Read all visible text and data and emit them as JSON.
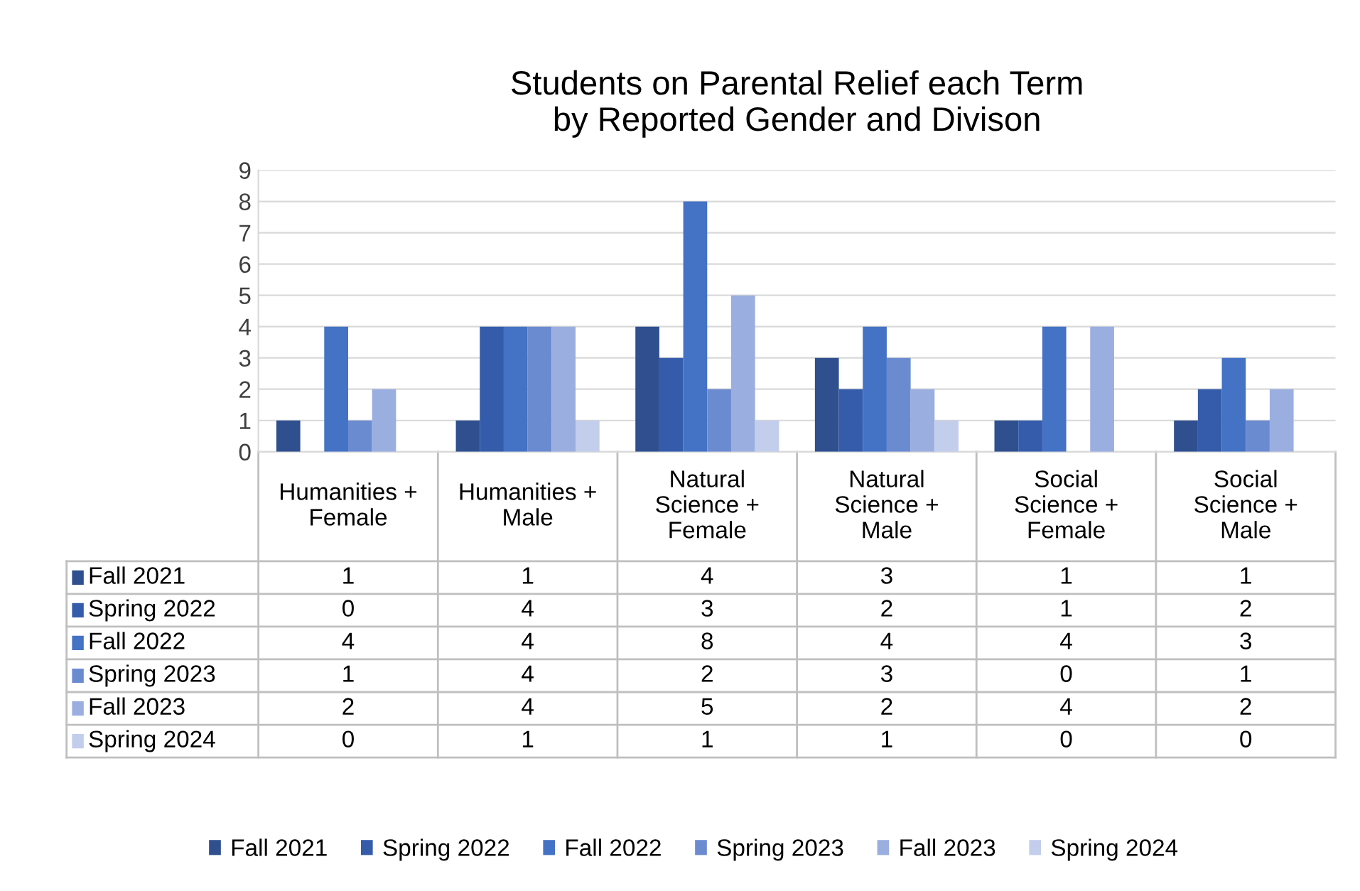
{
  "chart_data": {
    "type": "bar",
    "title": "Students on Parental Relief each Term\nby Reported Gender and Divison",
    "categories": [
      "Humanities +\nFemale",
      "Humanities +\nMale",
      "Natural\nScience +\nFemale",
      "Natural\nScience +\nMale",
      "Social\nScience +\nFemale",
      "Social\nScience +\nMale"
    ],
    "series": [
      {
        "name": "Fall 2021",
        "color": "#2f4f8f",
        "values": [
          1,
          1,
          4,
          3,
          1,
          1
        ]
      },
      {
        "name": "Spring 2022",
        "color": "#345caa",
        "values": [
          0,
          4,
          3,
          2,
          1,
          2
        ]
      },
      {
        "name": "Fall 2022",
        "color": "#4472c4",
        "values": [
          4,
          4,
          8,
          4,
          4,
          3
        ]
      },
      {
        "name": "Spring 2023",
        "color": "#6b8bd0",
        "values": [
          1,
          4,
          2,
          3,
          0,
          1
        ]
      },
      {
        "name": "Fall 2023",
        "color": "#9aaee0",
        "values": [
          2,
          4,
          5,
          2,
          4,
          2
        ]
      },
      {
        "name": "Spring 2024",
        "color": "#c3cdec",
        "values": [
          0,
          1,
          1,
          1,
          0,
          0
        ]
      }
    ],
    "ylim": [
      0,
      9
    ],
    "yticks": [
      0,
      1,
      2,
      3,
      4,
      5,
      6,
      7,
      8,
      9
    ],
    "grid": "y",
    "legend": "bottom",
    "data_labels": true
  }
}
